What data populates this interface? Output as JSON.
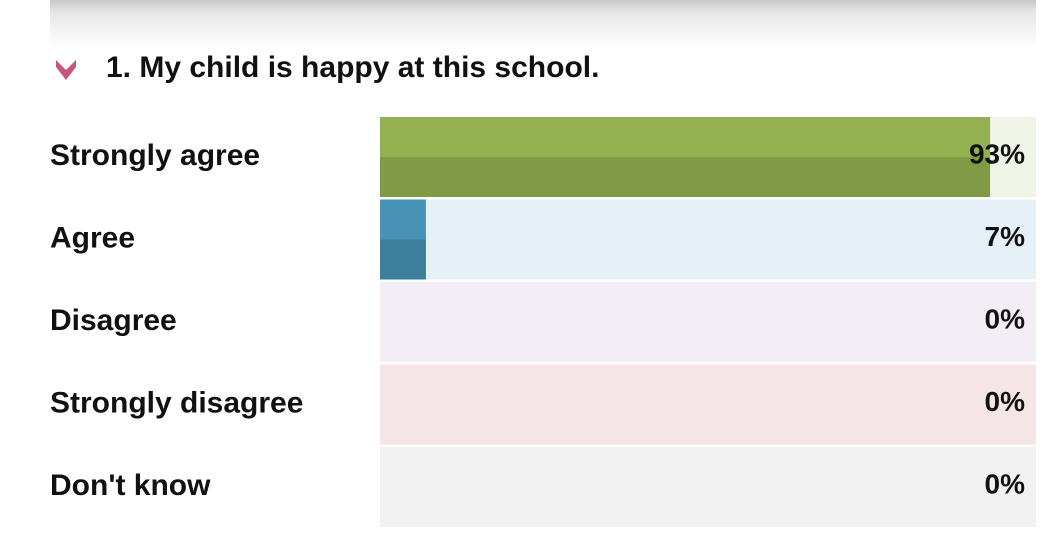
{
  "chart_data": {
    "type": "bar",
    "orientation": "horizontal",
    "title": "1. My child is happy at this school.",
    "categories": [
      "Strongly agree",
      "Agree",
      "Disagree",
      "Strongly disagree",
      "Don't know"
    ],
    "values": [
      93,
      7,
      0,
      0,
      0
    ],
    "value_labels": [
      "93%",
      "7%",
      "0%",
      "0%",
      "0%"
    ],
    "colors": [
      "#93b150",
      "#4793b5",
      "#a98bb5",
      "#d99094",
      "#a6a6a6"
    ],
    "track_colors": [
      "#eff4e6",
      "#e6f0f7",
      "#f3eef5",
      "#f6e5e6",
      "#f1f1f1"
    ],
    "xlim": [
      0,
      100
    ]
  }
}
